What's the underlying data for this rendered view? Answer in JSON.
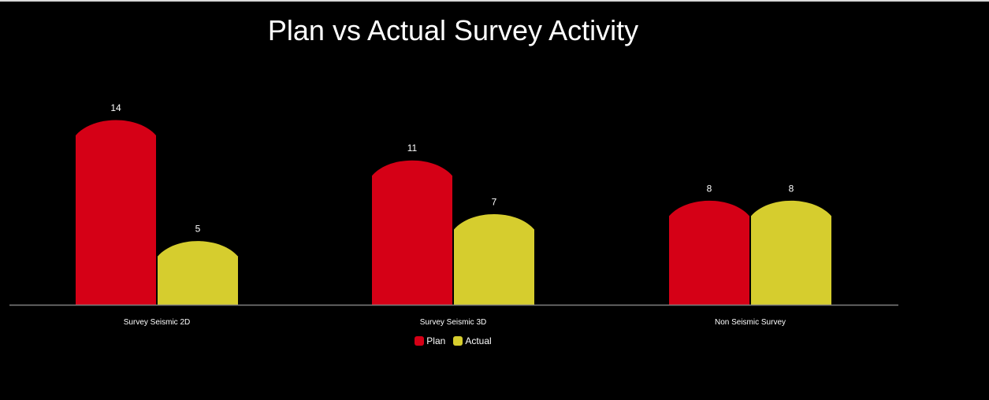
{
  "colors": {
    "plan": "#d50016",
    "actual": "#d6cd2e",
    "axis": "#7f7f7f"
  },
  "chart_data": {
    "type": "bar",
    "title": "Plan vs Actual Survey Activity",
    "categories": [
      "Survey Seismic 2D",
      "Survey Seismic 3D",
      "Non Seismic Survey"
    ],
    "series": [
      {
        "name": "Plan",
        "values": [
          14,
          11,
          8
        ]
      },
      {
        "name": "Actual",
        "values": [
          5,
          7,
          8
        ]
      }
    ],
    "ylim": [
      0,
      14
    ],
    "grid": false,
    "legend": "bottom-center",
    "data_labels": true
  }
}
